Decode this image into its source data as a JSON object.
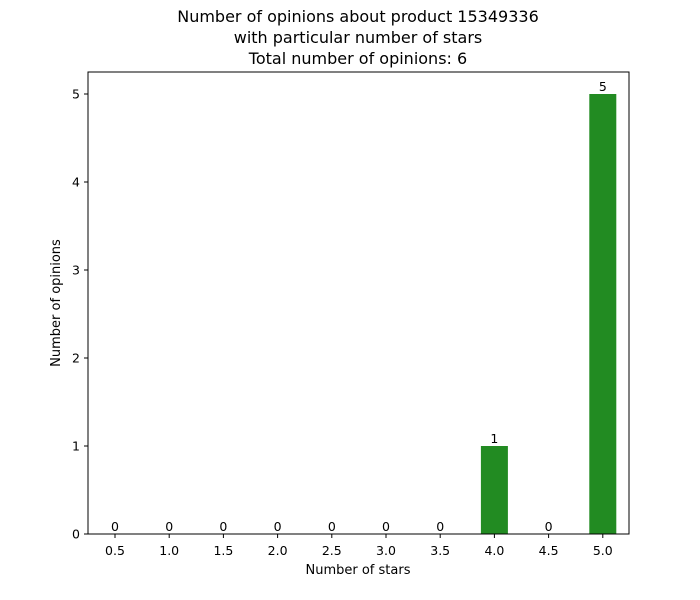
{
  "chart_data": {
    "type": "bar",
    "title_lines": [
      "Number of opinions about product 15349336",
      "with particular number of stars",
      "Total number of opinions: 6"
    ],
    "xlabel": "Number of stars",
    "ylabel": "Number of opinions",
    "categories": [
      "0.5",
      "1.0",
      "1.5",
      "2.0",
      "2.5",
      "3.0",
      "3.5",
      "4.0",
      "4.5",
      "5.0"
    ],
    "values": [
      0,
      0,
      0,
      0,
      0,
      0,
      0,
      1,
      0,
      5
    ],
    "data_labels": [
      "0",
      "0",
      "0",
      "0",
      "0",
      "0",
      "0",
      "1",
      "0",
      "5"
    ],
    "yticks": [
      "0",
      "1",
      "2",
      "3",
      "4",
      "5"
    ],
    "ylim": [
      0,
      5.25
    ],
    "grid": false,
    "bar_color": "#228b22"
  }
}
